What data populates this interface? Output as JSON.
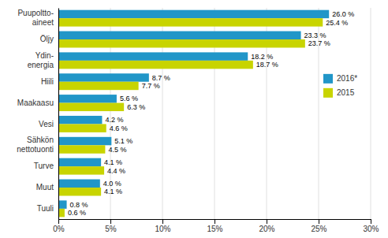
{
  "chart_data": {
    "type": "bar",
    "orientation": "horizontal",
    "categories": [
      "Puupoltto-\naineet",
      "Öljy",
      "Ydin-\nenergia",
      "Hiili",
      "Maakaasu",
      "Vesi",
      "Sähkön\nnettotuonti",
      "Turve",
      "Muut",
      "Tuuli"
    ],
    "series": [
      {
        "name": "2016*",
        "color": "#2196c8",
        "values": [
          26.0,
          23.3,
          18.2,
          8.7,
          5.6,
          4.2,
          5.1,
          4.1,
          4.0,
          0.8
        ],
        "value_labels": [
          "26.0 %",
          "23.3 %",
          "18.2 %",
          "8.7 %",
          "5.6 %",
          "4.2 %",
          "5.1 %",
          "4.1 %",
          "4.0 %",
          "0.8 %"
        ]
      },
      {
        "name": "2015",
        "color": "#c8d400",
        "values": [
          25.4,
          23.7,
          18.7,
          7.7,
          6.3,
          4.6,
          4.5,
          4.4,
          4.1,
          0.6
        ],
        "value_labels": [
          "25.4 %",
          "23.7 %",
          "18.7 %",
          "7.7 %",
          "6.3 %",
          "4.6 %",
          "4.5 %",
          "4.4 %",
          "4.1 %",
          "0.6 %"
        ]
      }
    ],
    "xlim": [
      0,
      30
    ],
    "xticks": [
      {
        "value": 0,
        "label": "0%"
      },
      {
        "value": 5,
        "label": "5%"
      },
      {
        "value": 10,
        "label": "10%"
      },
      {
        "value": 15,
        "label": "15%"
      },
      {
        "value": 20,
        "label": "20%"
      },
      {
        "value": 25,
        "label": "25%"
      },
      {
        "value": 30,
        "label": "30%"
      }
    ],
    "grid": true,
    "legend": "right",
    "data_labels": true
  }
}
